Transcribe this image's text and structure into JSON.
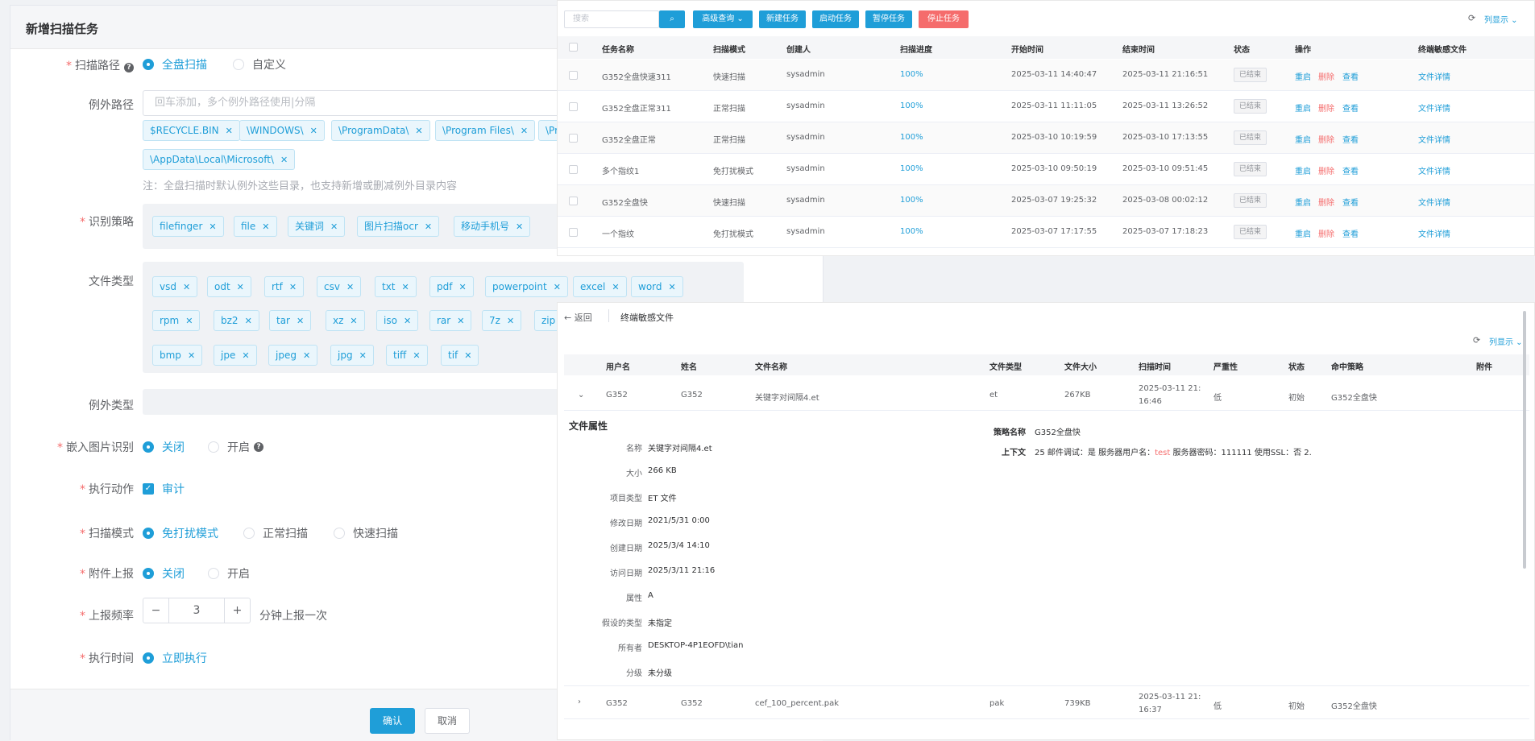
{
  "dialog": {
    "title": "新增扫描任务",
    "scan_path": {
      "label": "扫描路径",
      "options": [
        "全盘扫描",
        "自定义"
      ]
    },
    "exclude_path": {
      "label": "例外路径",
      "placeholder": "回车添加，多个例外路径使用|分隔",
      "tags": [
        "$RECYCLE.BIN",
        "\\WINDOWS\\",
        "\\ProgramData\\",
        "\\Program Files\\",
        "\\Pr",
        "\\AppData\\Local\\Microsoft\\"
      ],
      "note": "注：全盘扫描时默认例外这些目录，也支持新增或删减例外目录内容"
    },
    "strategy": {
      "label": "识别策略",
      "tags": [
        "filefinger",
        "file",
        "关键词",
        "图片扫描ocr",
        "移动手机号"
      ]
    },
    "file_type": {
      "label": "文件类型",
      "row1": [
        "vsd",
        "odt",
        "rtf",
        "csv",
        "txt",
        "pdf",
        "powerpoint",
        "excel",
        "word"
      ],
      "row2": [
        "rpm",
        "bz2",
        "tar",
        "xz",
        "iso",
        "rar",
        "7z",
        "zip"
      ],
      "row3": [
        "bmp",
        "jpe",
        "jpeg",
        "jpg",
        "tiff",
        "tif"
      ]
    },
    "exclude_type": {
      "label": "例外类型"
    },
    "embedded_image": {
      "label": "嵌入图片识别",
      "options": [
        "关闭",
        "开启"
      ]
    },
    "action": {
      "label": "执行动作",
      "value": "审计"
    },
    "scan_mode": {
      "label": "扫描模式",
      "options": [
        "免打扰模式",
        "正常扫描",
        "快速扫描"
      ]
    },
    "attach_report": {
      "label": "附件上报",
      "options": [
        "关闭",
        "开启"
      ]
    },
    "report_freq": {
      "label": "上报频率",
      "value": "3",
      "suffix": "分钟上报一次"
    },
    "exec_time": {
      "label": "执行时间",
      "value": "立即执行"
    },
    "confirm": "确认",
    "cancel": "取消"
  },
  "task_panel": {
    "search_placeholder": "搜索",
    "toolbar": [
      "高级查询",
      "新建任务",
      "启动任务",
      "暂停任务",
      "停止任务"
    ],
    "column_display": "列显示",
    "headers": [
      "任务名称",
      "扫描模式",
      "创建人",
      "扫描进度",
      "开始时间",
      "结束时间",
      "状态",
      "操作",
      "终端敏感文件"
    ],
    "ops": [
      "重启",
      "删除",
      "查看"
    ],
    "detail_link": "文件详情",
    "rows": [
      [
        "G352全盘快速311",
        "快速扫描",
        "sysadmin",
        "100%",
        "2025-03-11 14:40:47",
        "2025-03-11 21:16:51",
        "已结束"
      ],
      [
        "G352全盘正常311",
        "正常扫描",
        "sysadmin",
        "100%",
        "2025-03-11 11:11:05",
        "2025-03-11 13:26:52",
        "已结束"
      ],
      [
        "G352全盘正常",
        "正常扫描",
        "sysadmin",
        "100%",
        "2025-03-10 10:19:59",
        "2025-03-10 17:13:55",
        "已结束"
      ],
      [
        "多个指纹1",
        "免打扰模式",
        "sysadmin",
        "100%",
        "2025-03-10 09:50:19",
        "2025-03-10 09:51:45",
        "已结束"
      ],
      [
        "G352全盘快",
        "快速扫描",
        "sysadmin",
        "100%",
        "2025-03-07 19:25:32",
        "2025-03-08 00:02:12",
        "已结束"
      ],
      [
        "一个指纹",
        "免打扰模式",
        "sysadmin",
        "100%",
        "2025-03-07 17:17:55",
        "2025-03-07 17:18:23",
        "已结束"
      ]
    ]
  },
  "file_panel": {
    "back": "返回",
    "title": "终端敏感文件",
    "column_display": "列显示",
    "headers": [
      "用户名",
      "姓名",
      "文件名称",
      "文件类型",
      "文件大小",
      "扫描时间",
      "严重性",
      "状态",
      "命中策略",
      "附件"
    ],
    "row1": [
      "G352",
      "G352",
      "关键字对间隔4.et",
      "et",
      "267KB",
      "2025-03-11 21:",
      "16:46",
      "低",
      "初始",
      "G352全盘快"
    ],
    "props_title": "文件属性",
    "props": [
      [
        "名称",
        "关键字对间隔4.et"
      ],
      [
        "大小",
        "266 KB"
      ],
      [
        "项目类型",
        "ET 文件"
      ],
      [
        "修改日期",
        "2021/5/31 0:00"
      ],
      [
        "创建日期",
        "2025/3/4 14:10"
      ],
      [
        "访问日期",
        "2025/3/11 21:16"
      ],
      [
        "属性",
        "A"
      ],
      [
        "假设的类型",
        "未指定"
      ],
      [
        "所有者",
        "DESKTOP-4P1EOFD\\tian"
      ],
      [
        "分级",
        "未分级"
      ]
    ],
    "strategy_label": "策略名称",
    "strategy_value": "G352全盘快",
    "context_label": "上下文",
    "context_pre": "25 邮件调试：是 服务器用户名：",
    "context_hit": "test",
    "context_post": " 服务器密码：111111 使用SSL：否 2.",
    "row2": [
      "G352",
      "G352",
      "cef_100_percent.pak",
      "pak",
      "739KB",
      "2025-03-11 21:",
      "16:37",
      "低",
      "初始",
      "G352全盘快"
    ]
  }
}
